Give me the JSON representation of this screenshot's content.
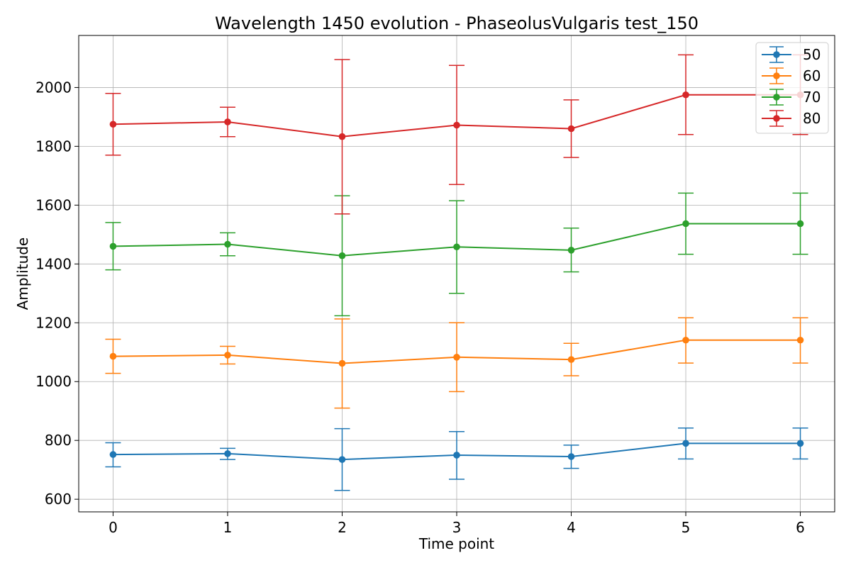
{
  "chart_data": {
    "type": "line",
    "title": "Wavelength 1450 evolution - PhaseolusVulgaris test_150",
    "xlabel": "Time point",
    "ylabel": "Amplitude",
    "x": [
      0,
      1,
      2,
      3,
      4,
      5,
      6
    ],
    "xticks": [
      0,
      1,
      2,
      3,
      4,
      5,
      6
    ],
    "yticks": [
      600,
      800,
      1000,
      1200,
      1400,
      1600,
      1800,
      2000
    ],
    "xlim": [
      -0.3,
      6.3
    ],
    "ylim": [
      557,
      2177
    ],
    "grid": true,
    "legend_position": "top-right",
    "series": [
      {
        "name": "50",
        "color": "#1f77b4",
        "values": [
          752,
          755,
          735,
          750,
          745,
          790,
          790
        ],
        "err_low": [
          710,
          735,
          630,
          668,
          705,
          737,
          737
        ],
        "err_high": [
          792,
          773,
          840,
          830,
          784,
          842,
          842
        ]
      },
      {
        "name": "60",
        "color": "#ff7f0e",
        "values": [
          1086,
          1090,
          1062,
          1083,
          1075,
          1141,
          1141
        ],
        "err_low": [
          1028,
          1060,
          910,
          966,
          1020,
          1063,
          1063
        ],
        "err_high": [
          1144,
          1120,
          1213,
          1200,
          1130,
          1217,
          1217
        ]
      },
      {
        "name": "70",
        "color": "#2ca02c",
        "values": [
          1460,
          1467,
          1428,
          1458,
          1447,
          1537,
          1537
        ],
        "err_low": [
          1380,
          1428,
          1224,
          1300,
          1373,
          1433,
          1433
        ],
        "err_high": [
          1541,
          1506,
          1632,
          1615,
          1522,
          1641,
          1641
        ]
      },
      {
        "name": "80",
        "color": "#d62728",
        "values": [
          1875,
          1883,
          1833,
          1872,
          1860,
          1975,
          1975
        ],
        "err_low": [
          1770,
          1833,
          1570,
          1670,
          1762,
          1840,
          1840
        ],
        "err_high": [
          1980,
          1933,
          2095,
          2075,
          1958,
          2111,
          2111
        ]
      }
    ]
  }
}
